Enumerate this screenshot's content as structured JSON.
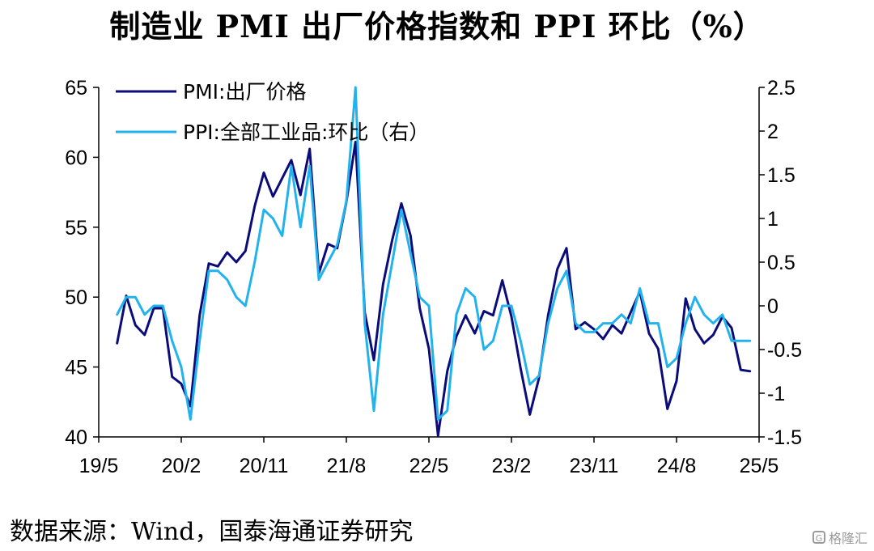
{
  "title": "制造业 PMI 出厂价格指数和 PPI 环比（%）",
  "source": "数据来源：Wind，国泰海通证券研究",
  "watermark": "格隆汇",
  "colors": {
    "pmi": "#0b0b7a",
    "ppi": "#22b3ee",
    "axis": "#000000"
  },
  "chart_data": {
    "type": "line",
    "x_tick_labels": [
      "19/5",
      "20/2",
      "20/11",
      "21/8",
      "22/5",
      "23/2",
      "23/11",
      "24/8",
      "25/5"
    ],
    "y_left": {
      "lim": [
        40,
        65
      ],
      "ticks": [
        40,
        45,
        50,
        55,
        60,
        65
      ]
    },
    "y_right": {
      "lim": [
        -1.5,
        2.5
      ],
      "ticks": [
        "-1.5",
        "-1",
        "-0.5",
        "0",
        "0.5",
        "1",
        "1.5",
        "2",
        "2.5"
      ]
    },
    "x_start": "2019-05",
    "series": [
      {
        "name": "PMI:出厂价格",
        "axis": "left",
        "start": "2019-07",
        "values": [
          46.7,
          50.1,
          48.0,
          47.3,
          49.2,
          49.2,
          44.3,
          43.8,
          42.2,
          48.7,
          52.4,
          52.2,
          53.2,
          52.5,
          53.3,
          56.5,
          58.9,
          57.2,
          58.5,
          59.8,
          57.3,
          60.6,
          51.7,
          53.8,
          53.5,
          56.8,
          61.1,
          48.9,
          45.5,
          50.9,
          54.1,
          56.7,
          54.4,
          49.2,
          46.3,
          40.1,
          44.7,
          47.2,
          48.7,
          47.4,
          49.0,
          48.7,
          51.2,
          48.6,
          44.9,
          41.6,
          44.2,
          48.7,
          52.0,
          53.5,
          47.7,
          48.2,
          47.7,
          47.0,
          48.0,
          47.4,
          48.9,
          50.4,
          47.4,
          46.3,
          42.0,
          44.0,
          49.9,
          47.7,
          46.7,
          47.3,
          48.6,
          47.8,
          44.8,
          44.7
        ]
      },
      {
        "name": "PPI:全部工业品:环比（右）",
        "axis": "right",
        "start": "2019-07",
        "values": [
          -0.1,
          0.1,
          0.1,
          -0.1,
          0.0,
          0.0,
          -0.4,
          -0.7,
          -1.3,
          -0.4,
          0.4,
          0.4,
          0.3,
          0.1,
          0.0,
          0.5,
          1.1,
          1.0,
          0.8,
          1.6,
          0.9,
          1.6,
          0.3,
          0.5,
          0.7,
          1.2,
          2.5,
          -0.2,
          -1.2,
          -0.1,
          0.5,
          1.1,
          0.6,
          0.1,
          0.0,
          -1.3,
          -1.2,
          -0.1,
          0.2,
          0.1,
          -0.5,
          -0.4,
          0.0,
          0.0,
          -0.4,
          -0.9,
          -0.8,
          -0.2,
          0.2,
          0.4,
          -0.2,
          -0.3,
          -0.3,
          -0.2,
          -0.2,
          -0.1,
          -0.2,
          0.2,
          -0.2,
          -0.2,
          -0.7,
          -0.6,
          -0.2,
          0.1,
          -0.1,
          -0.2,
          -0.1,
          -0.4,
          -0.4,
          -0.4
        ]
      }
    ],
    "legend": "top-left",
    "grid": false
  }
}
